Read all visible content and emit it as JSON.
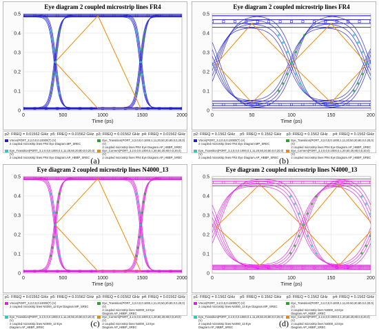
{
  "panels": [
    {
      "label": "(a)",
      "legend": {
        "freq": [
          "p2: FREQ = 0.01562 GHz",
          "p5: FREQ = 0.01562 GHz",
          "p3: FREQ = 0.01562 GHz",
          "p4: FREQ = 0.01562 GHz"
        ],
        "items": [
          {
            "text": "Vmon(PORT_3,2,0,0,0.10000(T) (V)\n2 coupled microstrip lines FR4 Eye Diagram.MP_SREC",
            "color": "#2222cc"
          },
          {
            "text": "Eye_Transition(PORT_3,2,0,0,0.1000,1,11,20,50,20,80,0,0,20,0) (V)\n2 coupled microstrip lines FR4 Eye Diagram.AP_HBBP_SREC",
            "color": "#22aa22"
          },
          {
            "text": "Eye_Transition(PORT_3,2,0,0,0.1000,0,1,11,20,50,20,80,0,0,20,0) (V)\n2 coupled microstrip lines FR4 Eye Diagram.AP_HBBP_SREC",
            "color": "#22cccc"
          },
          {
            "text": "Eye_Corners(PORT_3,2,0,0,0.1000,0,1,20,50,20,80,0,0,20,0) (V)\n2 coupled microstrip lines FR4 Eye Diagram.AP_HBBP_SREC",
            "color": "#ee8800"
          }
        ]
      }
    },
    {
      "label": "(b)",
      "legend": {
        "freq": [
          "p2: FREQ = 0.1562 GHz",
          "p5: FREQ = 0.1562 GHz",
          "p3: FREQ = 0.1562 GHz",
          "p4: FREQ = 0.1562 GHz"
        ],
        "items": [
          {
            "text": "Vmon(PORT_3,2,0,0,0.10000(T) (V)\n2 coupled microstrip lines FR4 Eye Diagram.MP_SREC",
            "color": "#2222cc"
          },
          {
            "text": "Eye_Transition(PORT_3,2,0,0,0.1000,1,11,20,50,20,80,0,0,20,0) (V)\n2 coupled microstrip lines FR4 Eye Diagram.AP_HBBP_SREC",
            "color": "#22aa22"
          },
          {
            "text": "Eye_Transition(PORT_3,2,0,0,0.1000,0,1,11,20,50,20,80,0,0,20,0) (V)\n2 coupled microstrip lines FR4 Eye Diagram.AP_HBBP_SREC",
            "color": "#22cccc"
          },
          {
            "text": "Eye_Corners(PORT_3,2,0,0,0.1000,0,1,20,50,20,80,0,0,20,0) (V)\n2 coupled microstrip lines FR4 Eye Diagram.AP_HBBP_SREC",
            "color": "#ee8800"
          }
        ]
      }
    },
    {
      "label": "(c)",
      "legend": {
        "freq": [
          "p1: FREQ = 0.01562 GHz",
          "p5: FREQ = 0.01562 GHz",
          "p3: FREQ = 0.01562 GHz",
          "p4: FREQ = 0.01562 GHz"
        ],
        "items": [
          {
            "text": "Vmon(PORT_3,2,0,0,0.10000(T) (V)\n2 coupled microstrip lines N4000_13 Eye Diagram.MP_SREC",
            "color": "#dd22dd"
          },
          {
            "text": "Eye_Transition(PORT_3,2,0,0,0.1000,1,11,20,50,20,80,0,0,20,0) (V)\n2 coupled microstrip lines N4000_13 Eye Diagram.AP_HBBP_SREC",
            "color": "#22aa22"
          },
          {
            "text": "Eye_Transition(PORT_3,2,0,0,0.1000,0,1,11,20,50,20,80,0,0,20,0) (V)\n2 coupled microstrip lines N4000_13 Eye Diagram.AP_HBBP_SREC",
            "color": "#22cccc"
          },
          {
            "text": "Eye_Corners(PORT_3,2,0,0,0.1000,0,1,20,50,20,80,0,0,20,0) (V)\n2 coupled microstrip lines N4000_13 Eye Diagram.AP_HBBP_SREC",
            "color": "#ee8800"
          }
        ]
      }
    },
    {
      "label": "(d)",
      "legend": {
        "freq": [
          "p1: FREQ = 0.1562 GHz",
          "p5: FREQ = 0.1562 GHz",
          "p3: FREQ = 0.1562 GHz",
          "p4: FREQ = 0.1562 GHz"
        ],
        "items": [
          {
            "text": "Vmon(PORT_3,2,0,0,0.10000(T) (V)\n2 coupled microstrip lines N4000_13 Eye Diagram.MP_SREC",
            "color": "#dd22dd"
          },
          {
            "text": "Eye_Transition(PORT_3,2,0,0,0.1000,1,11,20,50,20,80,0,0,20,0) (V)\n2 coupled microstrip lines N4000_13 Eye Diagram.AP_HBBP_SREC",
            "color": "#22aa22"
          },
          {
            "text": "Eye_Transition(PORT_3,2,0,0,0.1000,0,1,11,20,50,20,80,0,0,20,0) (V)\n2 coupled microstrip lines N4000_13 Eye Diagram.AP_HBBP_SREC",
            "color": "#22cccc"
          },
          {
            "text": "Eye_Corners(PORT_3,2,0,0,0.1000,0,1,20,50,20,80,0,0,20,0) (V)\n2 coupled microstrip lines N4000_13 Eye Diagram.AP_HBBP_SREC",
            "color": "#ee8800"
          }
        ]
      }
    }
  ],
  "chart_data": [
    {
      "type": "line",
      "title": "Eye diagram 2 coupled microstrip lines FR4",
      "xlabel": "Time (ps)",
      "ylabel": "",
      "xlim": [
        0,
        2000
      ],
      "ylim": [
        0,
        0.5
      ],
      "xticks": [
        "0",
        "500",
        "1000",
        "1500",
        "2000"
      ],
      "yticks": [
        "0",
        "0.1",
        "0.2",
        "0.3",
        "0.4",
        "0.5"
      ],
      "grid": true,
      "high_level": 0.49,
      "low_level": 0.01,
      "crossings": [
        400,
        1480
      ],
      "transition_width": 300,
      "trace_spread": 0.004,
      "eye_corners": {
        "x": [
          400,
          940,
          1480
        ],
        "y": [
          0.25,
          0.49,
          0.01
        ]
      },
      "trace_color": "#2222cc",
      "series": [
        {
          "name": "Vmon(PORT_3,2,0,0,0.10000(T) (V)",
          "color": "#2222cc"
        },
        {
          "name": "Eye_Transition(PORT_3,2,0,0,0.1000,1,11,20,50,20,80,0,0,20,0) (V)",
          "color": "#22aa22"
        },
        {
          "name": "Eye_Transition(PORT_3,2,0,0,0.1000,0,1,11,20,50,20,80,0,0,20,0) (V)",
          "color": "#22cccc"
        },
        {
          "name": "Eye_Corners(PORT_3,2,0,0,0.1000,0,1,20,50,20,80,0,0,20,0) (V)",
          "color": "#ee8800"
        }
      ]
    },
    {
      "type": "line",
      "title": "Eye diagram 2 coupled microstrip lines FR4",
      "xlabel": "Time (ps)",
      "ylabel": "",
      "xlim": [
        0,
        200
      ],
      "ylim": [
        0,
        0.5
      ],
      "xticks": [
        "0",
        "50",
        "100",
        "150",
        "200"
      ],
      "yticks": [
        "0",
        "0.1",
        "0.2",
        "0.3",
        "0.4",
        "0.5"
      ],
      "grid": true,
      "high_level": 0.46,
      "low_level": 0.03,
      "crossings": [
        5,
        100,
        195
      ],
      "transition_width": 90,
      "trace_spread": 0.02,
      "eye_corners": {
        "x": [
          5,
          50,
          100,
          150,
          195
        ],
        "y": [
          0.24,
          0.45,
          0.24,
          0.04,
          0.24
        ]
      },
      "trace_color": "#2222cc",
      "series": [
        {
          "name": "Vmon(PORT_3,2,0,0,0.10000(T) (V)",
          "color": "#2222cc"
        },
        {
          "name": "Eye_Transition(PORT_3,2,0,0,0.1000,1,11,20,50,20,80,0,0,20,0) (V)",
          "color": "#22aa22"
        },
        {
          "name": "Eye_Transition(PORT_3,2,0,0,0.1000,0,1,11,20,50,20,80,0,0,20,0) (V)",
          "color": "#22cccc"
        },
        {
          "name": "Eye_Corners(PORT_3,2,0,0,0.1000,0,1,20,50,20,80,0,0,20,0) (V)",
          "color": "#ee8800"
        }
      ]
    },
    {
      "type": "line",
      "title": "Eye diagram 2 coupled microstrip lines N4000_13",
      "xlabel": "Time (ps)",
      "ylabel": "",
      "xlim": [
        0,
        2000
      ],
      "ylim": [
        0,
        0.5
      ],
      "xticks": [
        "0",
        "500",
        "1000",
        "1500",
        "2000"
      ],
      "yticks": [
        "0",
        "0.1",
        "0.2",
        "0.3",
        "0.4",
        "0.5"
      ],
      "grid": true,
      "high_level": 0.49,
      "low_level": 0.01,
      "crossings": [
        400,
        1480
      ],
      "transition_width": 300,
      "trace_spread": 0.004,
      "eye_corners": {
        "x": [
          400,
          940,
          1480
        ],
        "y": [
          0.25,
          0.49,
          0.01
        ]
      },
      "trace_color": "#dd22dd",
      "series": [
        {
          "name": "Vmon(PORT_3,2,0,0,0.10000(T) (V)",
          "color": "#dd22dd"
        },
        {
          "name": "Eye_Transition(PORT_3,2,0,0,0.1000,1,11,20,50,20,80,0,0,20,0) (V)",
          "color": "#22aa22"
        },
        {
          "name": "Eye_Transition(PORT_3,2,0,0,0.1000,0,1,11,20,50,20,80,0,0,20,0) (V)",
          "color": "#22cccc"
        },
        {
          "name": "Eye_Corners(PORT_3,2,0,0,0.1000,0,1,20,50,20,80,0,0,20,0) (V)",
          "color": "#ee8800"
        }
      ]
    },
    {
      "type": "line",
      "title": "Eye diagram 2 coupled microstrip lines N4000_13",
      "xlabel": "Time (ps)",
      "ylabel": "",
      "xlim": [
        0,
        200
      ],
      "ylim": [
        0,
        0.5
      ],
      "xticks": [
        "0",
        "50",
        "100",
        "150",
        "200"
      ],
      "yticks": [
        "0",
        "0.1",
        "0.2",
        "0.3",
        "0.4",
        "0.5"
      ],
      "grid": true,
      "high_level": 0.47,
      "low_level": 0.03,
      "crossings": [
        5,
        115,
        205
      ],
      "transition_width": 90,
      "trace_spread": 0.012,
      "eye_corners": {
        "x": [
          5,
          60,
          115,
          160,
          205
        ],
        "y": [
          0.24,
          0.46,
          0.24,
          0.04,
          0.24
        ]
      },
      "trace_color": "#dd22dd",
      "series": [
        {
          "name": "Vmon(PORT_3,2,0,0,0.10000(T) (V)",
          "color": "#dd22dd"
        },
        {
          "name": "Eye_Transition(PORT_3,2,0,0,0.1000,1,11,20,50,20,80,0,0,20,0) (V)",
          "color": "#22aa22"
        },
        {
          "name": "Eye_Transition(PORT_3,2,0,0,0.1000,0,1,11,20,50,20,80,0,0,20,0) (V)",
          "color": "#22cccc"
        },
        {
          "name": "Eye_Corners(PORT_3,2,0,0,0.1000,0,1,20,50,20,80,0,0,20,0) (V)",
          "color": "#ee8800"
        }
      ]
    }
  ]
}
